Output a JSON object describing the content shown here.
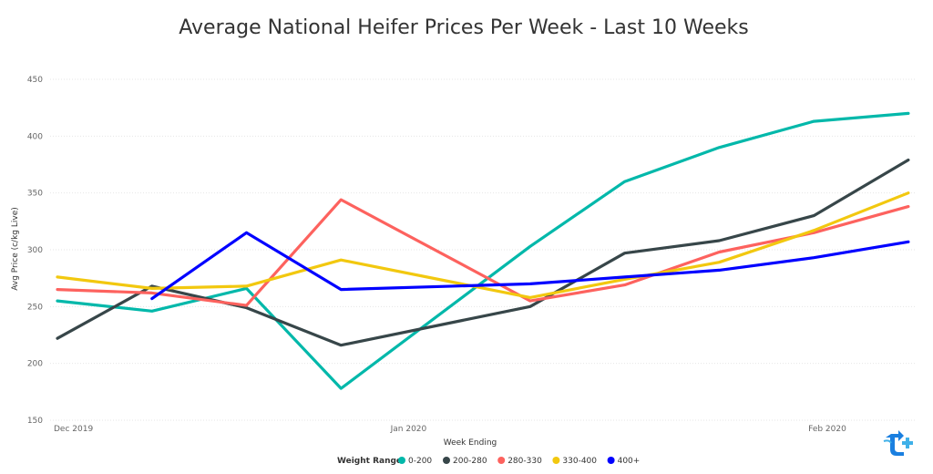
{
  "chart_data": {
    "type": "line",
    "title": "Average National Heifer Prices Per Week - Last 10 Weeks",
    "xlabel": "Week Ending",
    "ylabel": "Avg Price (c/kg Live)",
    "ylim": [
      150,
      450
    ],
    "yticks": [
      150,
      200,
      250,
      300,
      350,
      400,
      450
    ],
    "x": [
      "2019-12-06",
      "2019-12-13",
      "2019-12-20",
      "2019-12-27",
      "2020-01-10",
      "2020-01-17",
      "2020-01-24",
      "2020-01-31",
      "2020-02-07",
      "2020-02-14"
    ],
    "x_ticks": [
      {
        "date": "2019-12-06",
        "label": "Dec 2019"
      },
      {
        "date": "2020-01-01",
        "label": "Jan 2020"
      },
      {
        "date": "2020-02-01",
        "label": "Feb 2020"
      }
    ],
    "grid": true,
    "legend_position": "bottom",
    "legend_title": "Weight Range",
    "series": [
      {
        "name": "0-200",
        "color": "#01b8aa",
        "values": [
          255,
          246,
          266,
          178,
          303,
          360,
          390,
          413,
          420,
          null
        ]
      },
      {
        "name": "200-280",
        "color": "#374649",
        "values": [
          222,
          268,
          249,
          216,
          250,
          297,
          308,
          330,
          379,
          null
        ]
      },
      {
        "name": "280-330",
        "color": "#fd625e",
        "values": [
          265,
          262,
          251,
          344,
          255,
          269,
          298,
          315,
          338,
          null
        ]
      },
      {
        "name": "330-400",
        "color": "#f2c80f",
        "values": [
          276,
          266,
          268,
          291,
          258,
          274,
          289,
          317,
          350,
          null
        ]
      },
      {
        "name": "400+",
        "color": "#0000ff",
        "values": [
          null,
          257,
          315,
          265,
          270,
          276,
          282,
          293,
          307,
          null
        ]
      }
    ]
  },
  "logo": {
    "color": "#1a7fe0",
    "accent": "#3fb0e8",
    "icon": "brand-logo-icon"
  }
}
